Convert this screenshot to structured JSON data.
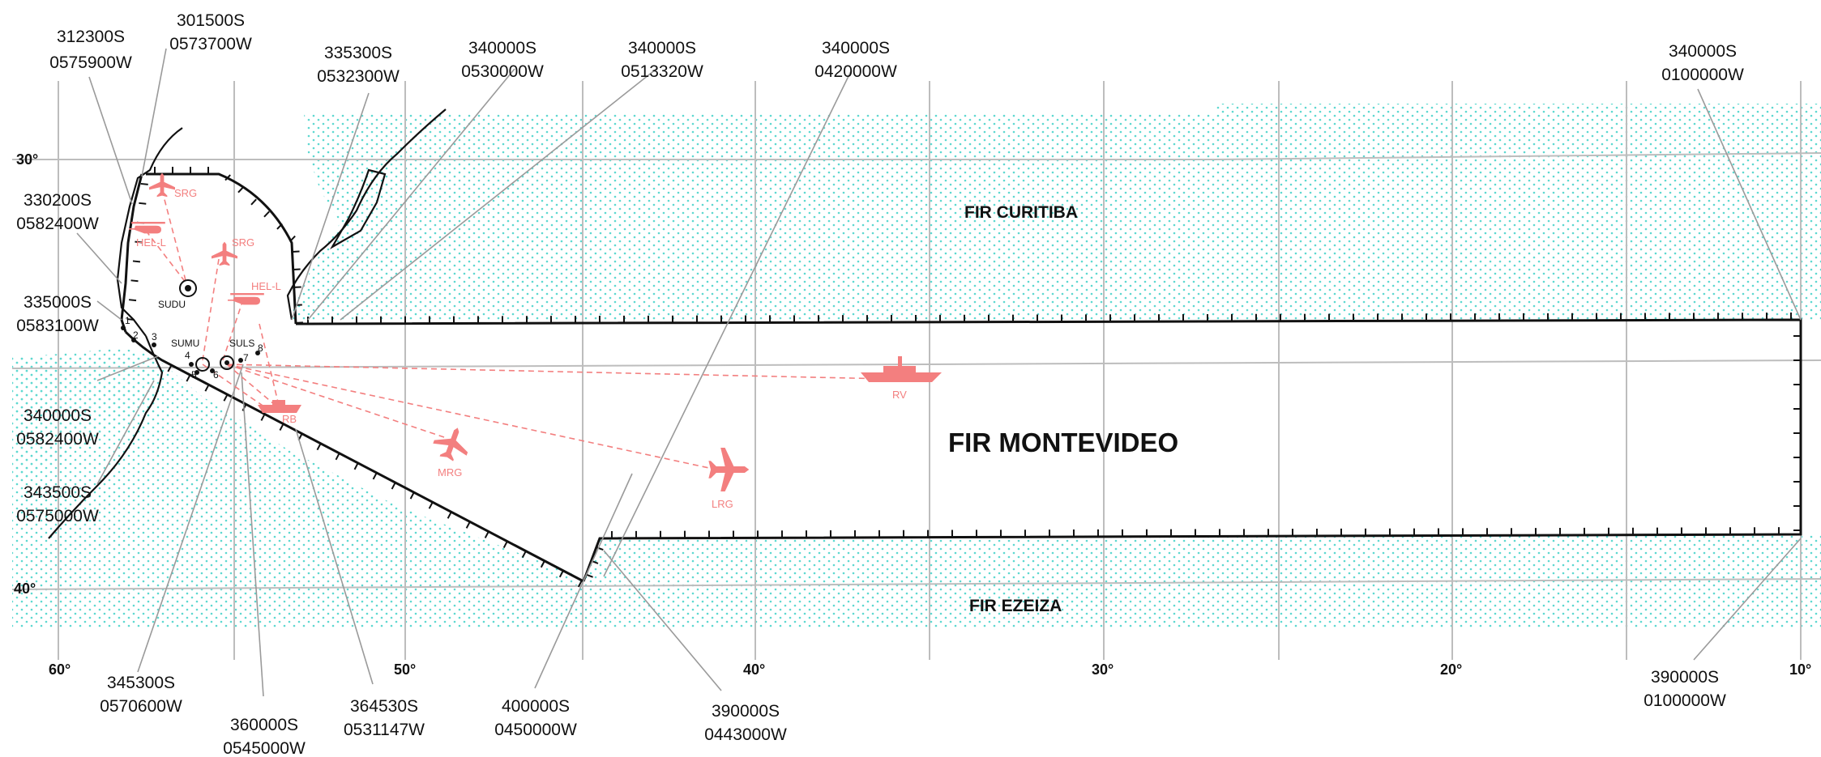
{
  "map": {
    "fir_labels": {
      "curitiba": "FIR CURITIBA",
      "montevideo": "FIR MONTEVIDEO",
      "ezeiza": "FIR EZEIZA"
    },
    "latitude_labels": [
      "30°",
      "40°"
    ],
    "longitude_labels": [
      "60°",
      "50°",
      "40°",
      "30°",
      "20°",
      "10°"
    ],
    "boundary_points": [
      {
        "lat": "312300S",
        "lon": "0575900W"
      },
      {
        "lat": "301500S",
        "lon": "0573700W"
      },
      {
        "lat": "335300S",
        "lon": "0532300W"
      },
      {
        "lat": "340000S",
        "lon": "0530000W"
      },
      {
        "lat": "340000S",
        "lon": "0513320W"
      },
      {
        "lat": "340000S",
        "lon": "0420000W"
      },
      {
        "lat": "340000S",
        "lon": "0100000W"
      },
      {
        "lat": "330200S",
        "lon": "0582400W"
      },
      {
        "lat": "335000S",
        "lon": "0583100W"
      },
      {
        "lat": "340000S",
        "lon": "0582400W"
      },
      {
        "lat": "343500S",
        "lon": "0575000W"
      },
      {
        "lat": "345300S",
        "lon": "0570600W"
      },
      {
        "lat": "360000S",
        "lon": "0545000W"
      },
      {
        "lat": "364530S",
        "lon": "0531147W"
      },
      {
        "lat": "400000S",
        "lon": "0450000W"
      },
      {
        "lat": "390000S",
        "lon": "0443000W"
      },
      {
        "lat": "390000S",
        "lon": "0100000W"
      }
    ],
    "aerodromes": [
      "SUDU",
      "SUMU",
      "SULS"
    ],
    "point_numbers": [
      "1",
      "2",
      "3",
      "4",
      "5",
      "6",
      "7",
      "8"
    ],
    "units": [
      "SRG",
      "HEL-L",
      "SRG",
      "HEL-L",
      "RB",
      "MRG",
      "LRG",
      "RV"
    ],
    "colors": {
      "dots": "#5ed8d0",
      "rescue_units": "#f37f7f",
      "boundary": "#111111",
      "grid": "#bdbdbd"
    }
  }
}
